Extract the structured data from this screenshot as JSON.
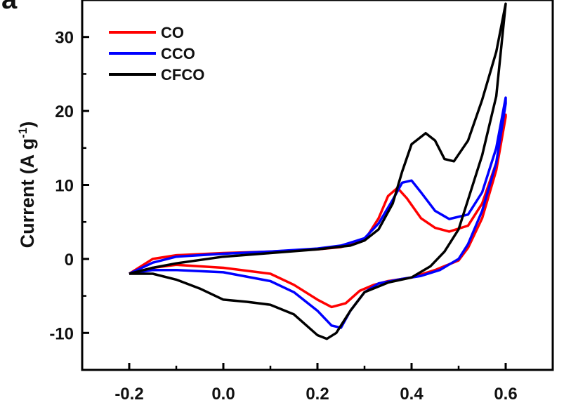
{
  "chart_data": {
    "type": "line",
    "panel_label": "a",
    "xlabel": "",
    "ylabel": "Current (A g",
    "ylabel_sup": "-1",
    "ylabel_close": ")",
    "xlim": [
      -0.3,
      0.7
    ],
    "ylim": [
      -15,
      35
    ],
    "x_ticks": [
      -0.2,
      0.0,
      0.2,
      0.4,
      0.6
    ],
    "x_tick_labels": [
      "-0.2",
      "0.0",
      "0.2",
      "0.4",
      "0.6"
    ],
    "y_ticks": [
      -10,
      0,
      10,
      20,
      30
    ],
    "y_tick_labels": [
      "-10",
      "0",
      "10",
      "20",
      "30"
    ],
    "legend_position": "top-left",
    "grid": false,
    "series": [
      {
        "name": "CO",
        "color": "#ff0000",
        "points": [
          [
            -0.2,
            -2.0
          ],
          [
            -0.15,
            0.0
          ],
          [
            -0.1,
            0.5
          ],
          [
            0.0,
            0.8
          ],
          [
            0.1,
            1.0
          ],
          [
            0.2,
            1.3
          ],
          [
            0.25,
            1.6
          ],
          [
            0.3,
            2.5
          ],
          [
            0.33,
            5.5
          ],
          [
            0.35,
            8.5
          ],
          [
            0.37,
            9.6
          ],
          [
            0.39,
            8.2
          ],
          [
            0.42,
            5.5
          ],
          [
            0.45,
            4.2
          ],
          [
            0.48,
            3.7
          ],
          [
            0.52,
            4.5
          ],
          [
            0.55,
            7.5
          ],
          [
            0.58,
            13.0
          ],
          [
            0.6,
            19.5
          ],
          [
            0.6,
            19.2
          ],
          [
            0.58,
            12.0
          ],
          [
            0.55,
            5.5
          ],
          [
            0.52,
            1.5
          ],
          [
            0.5,
            -0.2
          ],
          [
            0.45,
            -1.5
          ],
          [
            0.4,
            -2.5
          ],
          [
            0.35,
            -3.0
          ],
          [
            0.32,
            -3.5
          ],
          [
            0.29,
            -4.3
          ],
          [
            0.26,
            -6.0
          ],
          [
            0.23,
            -6.5
          ],
          [
            0.2,
            -5.5
          ],
          [
            0.15,
            -3.5
          ],
          [
            0.1,
            -2.0
          ],
          [
            0.0,
            -1.2
          ],
          [
            -0.1,
            -0.8
          ],
          [
            -0.15,
            -1.2
          ],
          [
            -0.2,
            -2.0
          ]
        ]
      },
      {
        "name": "CCO",
        "color": "#0000ff",
        "points": [
          [
            -0.2,
            -2.0
          ],
          [
            -0.15,
            -0.5
          ],
          [
            -0.1,
            0.3
          ],
          [
            0.0,
            0.7
          ],
          [
            0.1,
            1.0
          ],
          [
            0.2,
            1.4
          ],
          [
            0.25,
            1.8
          ],
          [
            0.3,
            2.8
          ],
          [
            0.33,
            4.8
          ],
          [
            0.36,
            8.0
          ],
          [
            0.38,
            10.3
          ],
          [
            0.4,
            10.6
          ],
          [
            0.42,
            9.0
          ],
          [
            0.45,
            6.5
          ],
          [
            0.48,
            5.4
          ],
          [
            0.52,
            6.0
          ],
          [
            0.55,
            9.0
          ],
          [
            0.58,
            15.0
          ],
          [
            0.6,
            21.8
          ],
          [
            0.6,
            21.0
          ],
          [
            0.58,
            13.0
          ],
          [
            0.55,
            6.5
          ],
          [
            0.52,
            2.0
          ],
          [
            0.5,
            0.0
          ],
          [
            0.46,
            -1.5
          ],
          [
            0.42,
            -2.3
          ],
          [
            0.38,
            -2.7
          ],
          [
            0.33,
            -3.3
          ],
          [
            0.3,
            -4.5
          ],
          [
            0.27,
            -7.0
          ],
          [
            0.25,
            -9.3
          ],
          [
            0.23,
            -9.0
          ],
          [
            0.2,
            -7.0
          ],
          [
            0.15,
            -4.5
          ],
          [
            0.1,
            -3.0
          ],
          [
            0.0,
            -1.8
          ],
          [
            -0.1,
            -1.5
          ],
          [
            -0.15,
            -1.5
          ],
          [
            -0.2,
            -2.0
          ]
        ]
      },
      {
        "name": "CFCO",
        "color": "#000000",
        "points": [
          [
            -0.2,
            -2.0
          ],
          [
            -0.15,
            -1.2
          ],
          [
            -0.1,
            -0.6
          ],
          [
            0.0,
            0.3
          ],
          [
            0.1,
            0.8
          ],
          [
            0.2,
            1.3
          ],
          [
            0.27,
            1.8
          ],
          [
            0.3,
            2.5
          ],
          [
            0.33,
            4.0
          ],
          [
            0.36,
            7.5
          ],
          [
            0.38,
            11.8
          ],
          [
            0.4,
            15.5
          ],
          [
            0.43,
            17.0
          ],
          [
            0.45,
            16.0
          ],
          [
            0.47,
            13.5
          ],
          [
            0.49,
            13.2
          ],
          [
            0.52,
            16.0
          ],
          [
            0.55,
            21.5
          ],
          [
            0.58,
            28.0
          ],
          [
            0.6,
            34.5
          ],
          [
            0.58,
            22.0
          ],
          [
            0.55,
            14.0
          ],
          [
            0.52,
            8.0
          ],
          [
            0.5,
            4.0
          ],
          [
            0.47,
            1.0
          ],
          [
            0.44,
            -1.0
          ],
          [
            0.4,
            -2.5
          ],
          [
            0.35,
            -3.2
          ],
          [
            0.3,
            -4.5
          ],
          [
            0.27,
            -7.0
          ],
          [
            0.24,
            -10.0
          ],
          [
            0.22,
            -10.8
          ],
          [
            0.2,
            -10.3
          ],
          [
            0.15,
            -7.5
          ],
          [
            0.1,
            -6.2
          ],
          [
            0.05,
            -5.8
          ],
          [
            0.0,
            -5.5
          ],
          [
            -0.05,
            -4.0
          ],
          [
            -0.1,
            -2.8
          ],
          [
            -0.15,
            -2.0
          ],
          [
            -0.2,
            -2.0
          ]
        ]
      }
    ]
  }
}
